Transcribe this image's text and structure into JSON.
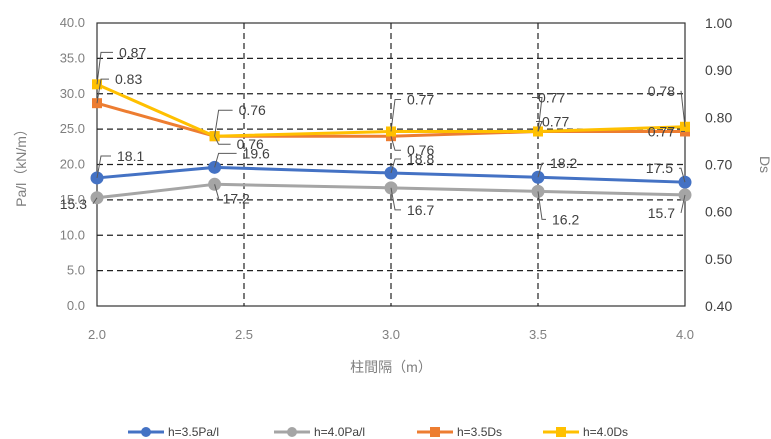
{
  "chart_data": {
    "type": "line",
    "x": [
      2.0,
      2.4,
      3.0,
      3.5,
      4.0
    ],
    "xlabel": "柱間隔（m）",
    "xticks": [
      "2.0",
      "2.5",
      "3.0",
      "3.5",
      "4.0"
    ],
    "xlim": [
      2.0,
      4.0
    ],
    "ylabel": "Pa/l（kN/m）",
    "yticks": [
      "0.0",
      "5.0",
      "10.0",
      "15.0",
      "20.0",
      "25.0",
      "30.0",
      "35.0",
      "40.0"
    ],
    "ylim": [
      0,
      40
    ],
    "y2label": "Ds",
    "y2ticks": [
      "0.40",
      "0.50",
      "0.60",
      "0.70",
      "0.80",
      "0.90",
      "1.00"
    ],
    "y2lim": [
      0.4,
      1.0
    ],
    "grid": true,
    "legend_position": "bottom",
    "series": [
      {
        "name": "h=3.5Pa/l",
        "axis": "left",
        "color": "#4472c4",
        "marker": "circle",
        "values": [
          18.1,
          19.6,
          18.8,
          18.2,
          17.5
        ],
        "labels": [
          "18.1",
          "19.6",
          "18.8",
          "18.2",
          "17.5"
        ]
      },
      {
        "name": "h=4.0Pa/l",
        "axis": "left",
        "color": "#a5a5a5",
        "marker": "circle",
        "values": [
          15.3,
          17.2,
          16.7,
          16.2,
          15.7
        ],
        "labels": [
          "15.3",
          "17.2",
          "16.7",
          "16.2",
          "15.7"
        ]
      },
      {
        "name": "h=3.5Ds",
        "axis": "right",
        "color": "#ed7d31",
        "marker": "square",
        "values": [
          0.83,
          0.76,
          0.76,
          0.77,
          0.77
        ],
        "labels": [
          "0.83",
          "0.76",
          "0.76",
          "0.77",
          "0.77"
        ]
      },
      {
        "name": "h=4.0Ds",
        "axis": "right",
        "color": "#ffc000",
        "marker": "square",
        "values": [
          0.87,
          0.76,
          0.77,
          0.77,
          0.78
        ],
        "labels": [
          "0.87",
          "0.76",
          "0.77",
          "0.77",
          "0.78"
        ]
      }
    ]
  }
}
